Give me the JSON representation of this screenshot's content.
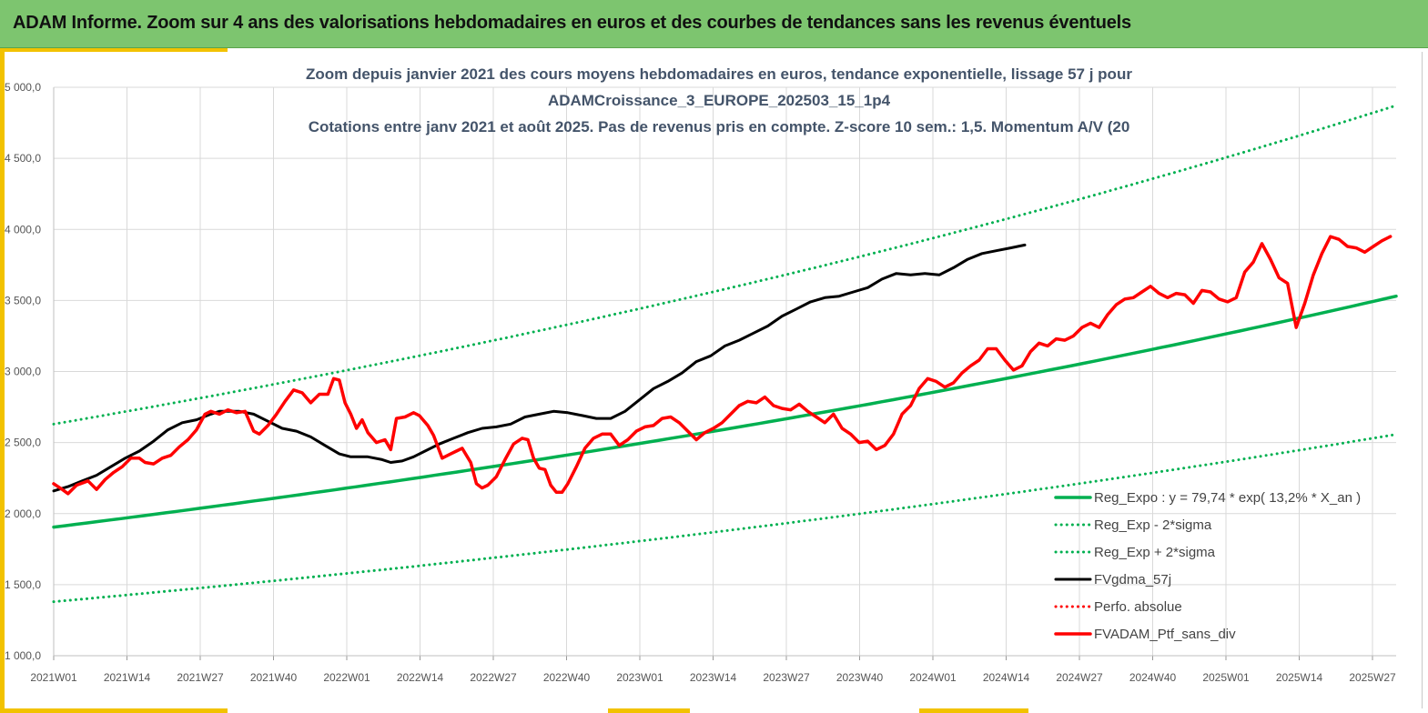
{
  "banner": {
    "title": "ADAM Informe. Zoom sur 4 ans des valorisations hebdomadaires en euros et des courbes de tendances sans les revenus éventuels"
  },
  "colors": {
    "banner": "#7dc56f",
    "accent": "#f2c200",
    "title_text": "#44546a",
    "trend": "#00b050",
    "moving_average": "#000000",
    "perfo": "#ff0000"
  },
  "chart_data": {
    "type": "line",
    "title_lines": [
      "Zoom depuis janvier 2021 des cours moyens hebdomadaires  en euros, tendance exponentielle, lissage 57 j pour",
      "ADAMCroissance_3_EUROPE_202503_15_1p4",
      "Cotations  entre janv 2021 et août 2025. Pas de revenus pris en compte. Z-score 10 sem.: 1,5. Momentum A/V (20"
    ],
    "x_ticks": [
      "2021W01",
      "2021W14",
      "2021W27",
      "2021W40",
      "2022W01",
      "2022W14",
      "2022W27",
      "2022W40",
      "2023W01",
      "2023W14",
      "2023W27",
      "2023W40",
      "2024W01",
      "2024W14",
      "2024W27",
      "2024W40",
      "2025W01",
      "2025W14",
      "2025W27"
    ],
    "y_ticks": [
      "1 000,0",
      "1 500,0",
      "2 000,0",
      "2 500,0",
      "3 000,0",
      "3 500,0",
      "4 000,0",
      "4 500,0",
      "5 000,0"
    ],
    "ylim": [
      1000,
      5000
    ],
    "x_unit_note": "",
    "grid": true,
    "legend_position": "bottom-right",
    "weeks_total": 240,
    "series": [
      {
        "name": "Reg_Expo : y = 79,74 * exp( 13,2% *  X_an )",
        "style": "solid-thick",
        "color": "#00b050",
        "anchors": [
          [
            0,
            1905
          ],
          [
            235,
            3485
          ]
        ]
      },
      {
        "name": "Reg_Exp - 2*sigma",
        "style": "dotted",
        "color": "#00b050",
        "anchors": [
          [
            0,
            1380
          ],
          [
            235,
            2525
          ]
        ]
      },
      {
        "name": "Reg_Exp + 2*sigma",
        "style": "dotted",
        "color": "#00b050",
        "anchors": [
          [
            0,
            2630
          ],
          [
            235,
            4810
          ]
        ]
      },
      {
        "name": "FVgdma_57j",
        "style": "solid",
        "color": "#000000",
        "points": [
          [
            0,
            2160
          ],
          [
            5,
            2190
          ],
          [
            10,
            2230
          ],
          [
            15,
            2270
          ],
          [
            20,
            2330
          ],
          [
            25,
            2390
          ],
          [
            30,
            2440
          ],
          [
            35,
            2510
          ],
          [
            40,
            2590
          ],
          [
            45,
            2640
          ],
          [
            50,
            2660
          ],
          [
            55,
            2700
          ],
          [
            58,
            2720
          ],
          [
            65,
            2720
          ],
          [
            70,
            2700
          ],
          [
            75,
            2650
          ],
          [
            80,
            2600
          ],
          [
            85,
            2580
          ],
          [
            90,
            2540
          ],
          [
            95,
            2480
          ],
          [
            100,
            2420
          ],
          [
            104,
            2400
          ],
          [
            110,
            2400
          ],
          [
            115,
            2380
          ],
          [
            118,
            2360
          ],
          [
            122,
            2370
          ],
          [
            126,
            2400
          ],
          [
            130,
            2440
          ],
          [
            135,
            2490
          ],
          [
            140,
            2530
          ],
          [
            145,
            2570
          ],
          [
            150,
            2600
          ],
          [
            155,
            2610
          ],
          [
            160,
            2630
          ],
          [
            165,
            2680
          ],
          [
            170,
            2700
          ],
          [
            175,
            2720
          ],
          [
            180,
            2710
          ],
          [
            185,
            2690
          ],
          [
            190,
            2670
          ],
          [
            195,
            2670
          ],
          [
            200,
            2720
          ],
          [
            205,
            2800
          ],
          [
            210,
            2880
          ],
          [
            215,
            2930
          ],
          [
            220,
            2990
          ],
          [
            225,
            3070
          ],
          [
            230,
            3110
          ],
          [
            235,
            3180
          ],
          [
            240,
            3220
          ],
          [
            245,
            3270
          ],
          [
            250,
            3320
          ],
          [
            255,
            3390
          ],
          [
            260,
            3440
          ],
          [
            265,
            3490
          ],
          [
            270,
            3520
          ],
          [
            275,
            3530
          ],
          [
            280,
            3560
          ],
          [
            285,
            3590
          ],
          [
            290,
            3650
          ],
          [
            295,
            3690
          ],
          [
            300,
            3680
          ],
          [
            305,
            3690
          ],
          [
            310,
            3680
          ],
          [
            315,
            3730
          ],
          [
            320,
            3790
          ],
          [
            325,
            3830
          ],
          [
            330,
            3850
          ],
          [
            335,
            3870
          ],
          [
            340,
            3890
          ]
        ]
      },
      {
        "name": "Perfo. absolue",
        "style": "dotted",
        "color": "#ff0000",
        "points": []
      },
      {
        "name": "FVADAM_Ptf_sans_div",
        "style": "solid-thick",
        "color": "#ff0000",
        "points": [
          [
            0,
            2210
          ],
          [
            3,
            2170
          ],
          [
            5,
            2140
          ],
          [
            8,
            2200
          ],
          [
            12,
            2230
          ],
          [
            15,
            2170
          ],
          [
            18,
            2240
          ],
          [
            21,
            2290
          ],
          [
            24,
            2330
          ],
          [
            27,
            2390
          ],
          [
            30,
            2390
          ],
          [
            32,
            2360
          ],
          [
            35,
            2350
          ],
          [
            38,
            2390
          ],
          [
            41,
            2410
          ],
          [
            44,
            2470
          ],
          [
            47,
            2520
          ],
          [
            50,
            2590
          ],
          [
            53,
            2700
          ],
          [
            55,
            2720
          ],
          [
            58,
            2700
          ],
          [
            61,
            2730
          ],
          [
            64,
            2710
          ],
          [
            67,
            2720
          ],
          [
            70,
            2580
          ],
          [
            72,
            2560
          ],
          [
            75,
            2620
          ],
          [
            78,
            2700
          ],
          [
            81,
            2790
          ],
          [
            84,
            2870
          ],
          [
            87,
            2850
          ],
          [
            90,
            2780
          ],
          [
            93,
            2840
          ],
          [
            96,
            2840
          ],
          [
            98,
            2950
          ],
          [
            100,
            2940
          ],
          [
            102,
            2780
          ],
          [
            104,
            2700
          ],
          [
            106,
            2600
          ],
          [
            108,
            2660
          ],
          [
            110,
            2570
          ],
          [
            113,
            2500
          ],
          [
            116,
            2520
          ],
          [
            118,
            2450
          ],
          [
            120,
            2670
          ],
          [
            123,
            2680
          ],
          [
            126,
            2710
          ],
          [
            128,
            2690
          ],
          [
            131,
            2620
          ],
          [
            133,
            2550
          ],
          [
            136,
            2390
          ],
          [
            139,
            2420
          ],
          [
            141,
            2440
          ],
          [
            143,
            2460
          ],
          [
            146,
            2360
          ],
          [
            148,
            2210
          ],
          [
            150,
            2180
          ],
          [
            152,
            2200
          ],
          [
            155,
            2260
          ],
          [
            158,
            2380
          ],
          [
            161,
            2490
          ],
          [
            164,
            2530
          ],
          [
            166,
            2520
          ],
          [
            168,
            2390
          ],
          [
            170,
            2320
          ],
          [
            172,
            2310
          ],
          [
            174,
            2200
          ],
          [
            176,
            2150
          ],
          [
            178,
            2150
          ],
          [
            180,
            2210
          ],
          [
            183,
            2330
          ],
          [
            186,
            2460
          ],
          [
            189,
            2530
          ],
          [
            192,
            2560
          ],
          [
            195,
            2560
          ],
          [
            198,
            2480
          ],
          [
            201,
            2520
          ],
          [
            204,
            2580
          ],
          [
            207,
            2610
          ],
          [
            210,
            2620
          ],
          [
            213,
            2670
          ],
          [
            216,
            2680
          ],
          [
            219,
            2640
          ],
          [
            222,
            2580
          ],
          [
            225,
            2520
          ],
          [
            228,
            2570
          ],
          [
            231,
            2600
          ],
          [
            234,
            2640
          ],
          [
            237,
            2700
          ],
          [
            240,
            2760
          ],
          [
            243,
            2790
          ],
          [
            246,
            2780
          ],
          [
            249,
            2820
          ],
          [
            252,
            2760
          ],
          [
            255,
            2740
          ],
          [
            258,
            2730
          ],
          [
            261,
            2770
          ],
          [
            264,
            2720
          ],
          [
            267,
            2680
          ],
          [
            270,
            2640
          ],
          [
            273,
            2700
          ],
          [
            276,
            2600
          ],
          [
            279,
            2560
          ],
          [
            282,
            2500
          ],
          [
            285,
            2510
          ],
          [
            288,
            2450
          ],
          [
            291,
            2480
          ],
          [
            294,
            2560
          ],
          [
            297,
            2700
          ],
          [
            300,
            2760
          ],
          [
            303,
            2880
          ],
          [
            306,
            2950
          ],
          [
            309,
            2930
          ],
          [
            312,
            2890
          ],
          [
            315,
            2920
          ],
          [
            318,
            2990
          ],
          [
            321,
            3040
          ],
          [
            324,
            3080
          ],
          [
            327,
            3160
          ],
          [
            330,
            3160
          ],
          [
            333,
            3080
          ],
          [
            336,
            3010
          ],
          [
            339,
            3040
          ],
          [
            342,
            3140
          ],
          [
            345,
            3200
          ],
          [
            348,
            3180
          ],
          [
            351,
            3230
          ],
          [
            354,
            3220
          ],
          [
            357,
            3250
          ],
          [
            360,
            3310
          ],
          [
            363,
            3340
          ],
          [
            366,
            3310
          ],
          [
            369,
            3400
          ],
          [
            372,
            3470
          ],
          [
            375,
            3510
          ],
          [
            378,
            3520
          ],
          [
            381,
            3560
          ],
          [
            384,
            3600
          ],
          [
            387,
            3550
          ],
          [
            390,
            3520
          ],
          [
            393,
            3550
          ],
          [
            396,
            3540
          ],
          [
            399,
            3480
          ],
          [
            402,
            3570
          ],
          [
            405,
            3560
          ],
          [
            408,
            3510
          ],
          [
            411,
            3490
          ],
          [
            414,
            3520
          ],
          [
            417,
            3700
          ],
          [
            420,
            3770
          ],
          [
            423,
            3900
          ],
          [
            426,
            3790
          ],
          [
            429,
            3660
          ],
          [
            432,
            3620
          ],
          [
            435,
            3310
          ],
          [
            438,
            3480
          ],
          [
            441,
            3680
          ],
          [
            444,
            3830
          ],
          [
            447,
            3950
          ],
          [
            450,
            3930
          ],
          [
            453,
            3880
          ],
          [
            456,
            3870
          ],
          [
            459,
            3840
          ],
          [
            462,
            3880
          ],
          [
            465,
            3920
          ],
          [
            468,
            3950
          ]
        ]
      }
    ]
  }
}
